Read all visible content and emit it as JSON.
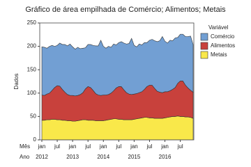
{
  "chart_data": {
    "type": "stacked_area",
    "title": "Gráfico de área empilhada de Comércio; Alimentos; Metais",
    "y_label": "Dados",
    "x_row_labels": [
      "Mês",
      "Ano"
    ],
    "categories": [
      "jan",
      null,
      null,
      null,
      null,
      null,
      "jul",
      null,
      null,
      null,
      null,
      null,
      "jan",
      null,
      null,
      null,
      null,
      null,
      "jul",
      null,
      null,
      null,
      null,
      null,
      "jan",
      null,
      null,
      null,
      null,
      null,
      "jul",
      null,
      null,
      null,
      null,
      null,
      "jan",
      null,
      null,
      null,
      null,
      null,
      "jul",
      null,
      null,
      null,
      null,
      null,
      "jan",
      null,
      null,
      null,
      null,
      null,
      "jul",
      null,
      null,
      null,
      null,
      null
    ],
    "category_years": [
      "2012",
      null,
      null,
      null,
      null,
      null,
      null,
      null,
      null,
      null,
      null,
      null,
      "2013",
      null,
      null,
      null,
      null,
      null,
      null,
      null,
      null,
      null,
      null,
      null,
      "2014",
      null,
      null,
      null,
      null,
      null,
      null,
      null,
      null,
      null,
      null,
      null,
      "2015",
      null,
      null,
      null,
      null,
      null,
      null,
      null,
      null,
      null,
      null,
      null,
      "2016",
      null,
      null,
      null,
      null,
      null,
      null,
      null,
      null,
      null,
      null,
      null
    ],
    "legend_title": "Variável",
    "series": [
      {
        "name": "Metais",
        "color": "#f9e84a",
        "values": [
          42,
          42,
          43,
          43,
          44,
          44,
          43,
          43,
          42,
          42,
          41,
          41,
          40,
          40,
          41,
          42,
          43,
          43,
          42,
          42,
          42,
          41,
          41,
          41,
          41,
          42,
          43,
          44,
          45,
          45,
          44,
          44,
          43,
          43,
          43,
          43,
          44,
          45,
          46,
          47,
          48,
          48,
          47,
          47,
          46,
          46,
          46,
          46,
          47,
          48,
          49,
          50,
          50,
          51,
          50,
          50,
          49,
          49,
          48,
          46
        ]
      },
      {
        "name": "Alimentos",
        "color": "#c8413c",
        "values": [
          54,
          53,
          55,
          57,
          62,
          68,
          73,
          72,
          66,
          60,
          56,
          54,
          55,
          54,
          54,
          55,
          58,
          66,
          72,
          70,
          64,
          58,
          55,
          54,
          55,
          54,
          54,
          56,
          60,
          66,
          70,
          70,
          64,
          58,
          55,
          54,
          54,
          54,
          55,
          56,
          60,
          66,
          70,
          70,
          64,
          58,
          56,
          55,
          56,
          55,
          56,
          58,
          62,
          70,
          76,
          76,
          68,
          62,
          58,
          56
        ]
      },
      {
        "name": "Comércio",
        "color": "#729fd3",
        "values": [
          103,
          103,
          98,
          100,
          96,
          88,
          86,
          92,
          96,
          102,
          104,
          110,
          104,
          100,
          103,
          98,
          95,
          88,
          90,
          92,
          96,
          102,
          105,
          118,
          104,
          100,
          103,
          98,
          100,
          92,
          94,
          96,
          100,
          104,
          108,
          120,
          104,
          100,
          104,
          100,
          100,
          94,
          96,
          98,
          102,
          106,
          110,
          120,
          108,
          104,
          108,
          104,
          106,
          98,
          100,
          100,
          104,
          110,
          116,
          102
        ]
      }
    ],
    "legend_order": [
      2,
      1,
      0
    ],
    "ylim": [
      0,
      250
    ],
    "yticks": [
      0,
      50,
      100,
      150,
      200,
      250
    ]
  }
}
